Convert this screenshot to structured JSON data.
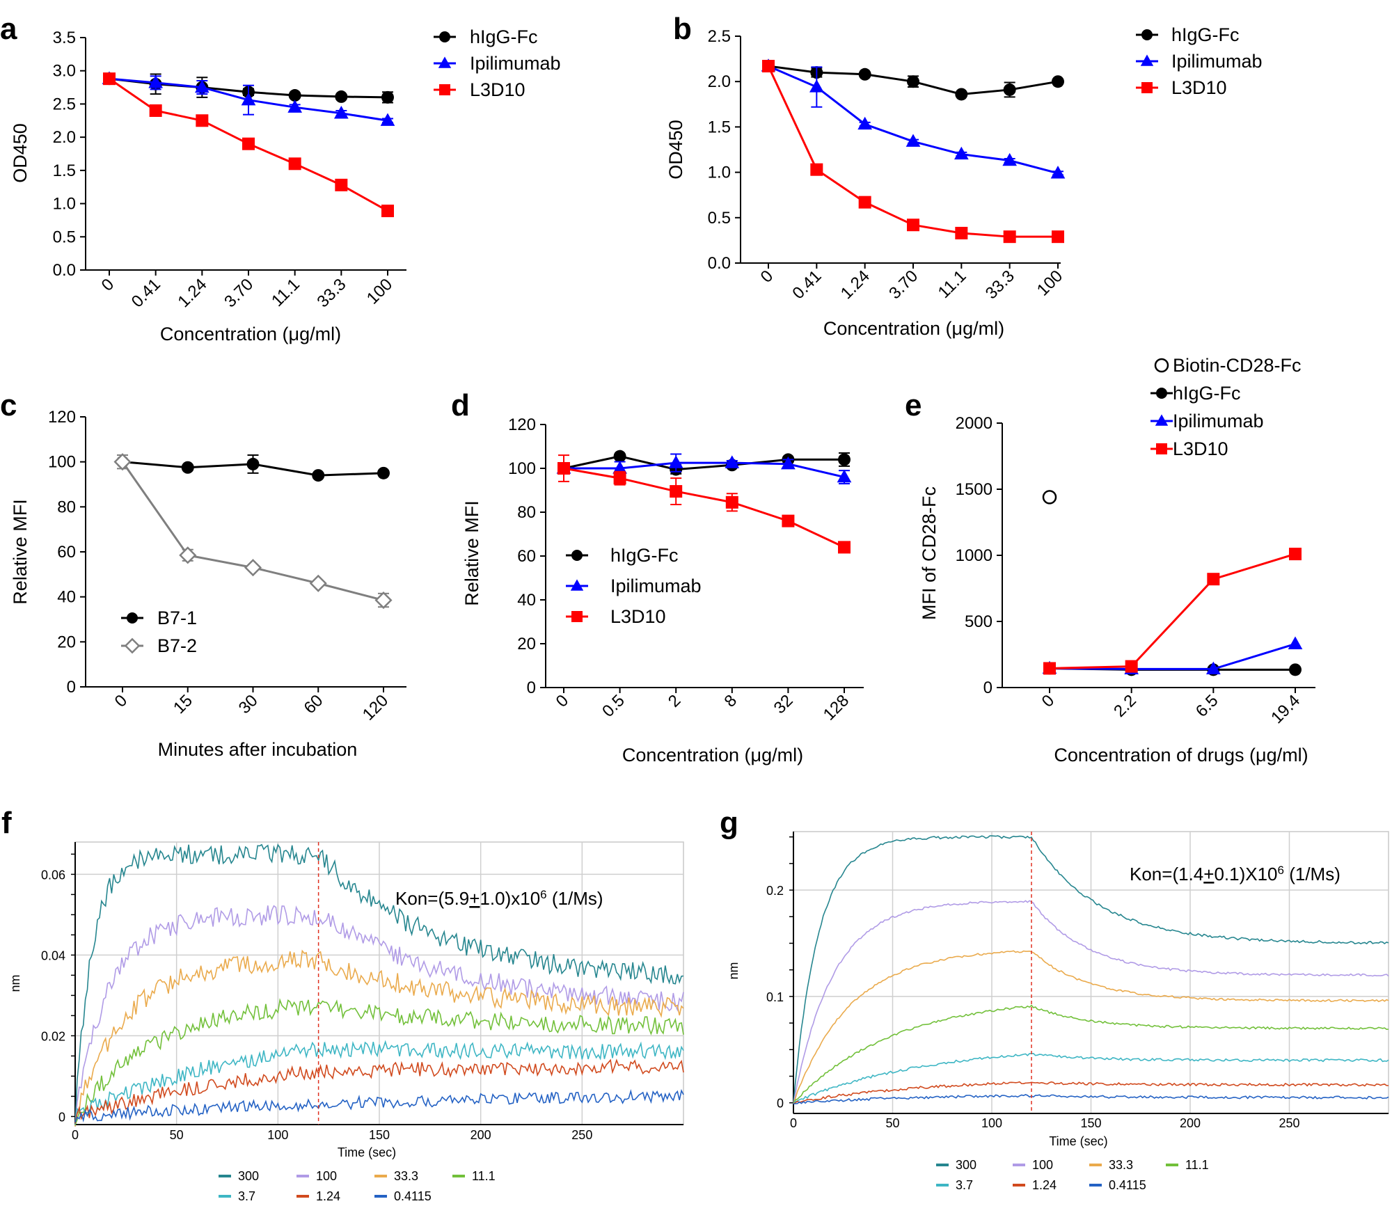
{
  "chart_data": [
    {
      "id": "a",
      "panel_label": "a",
      "type": "line",
      "categories": [
        "0",
        "0.41",
        "1.24",
        "3.70",
        "11.1",
        "33.3",
        "100"
      ],
      "xlabel": "Concentration (μg/ml)",
      "ylabel": "OD450",
      "ylim": [
        0,
        3.5
      ],
      "yticks": [
        "0.0",
        "0.5",
        "1.0",
        "1.5",
        "2.0",
        "2.5",
        "3.0",
        "3.5"
      ],
      "legend_position": "top-right",
      "series": [
        {
          "name": "hIgG-Fc",
          "color": "#000000",
          "marker": "circle",
          "values": [
            2.88,
            2.8,
            2.75,
            2.68,
            2.63,
            2.61,
            2.6
          ],
          "errors": [
            0.05,
            0.15,
            0.15,
            0.05,
            0.03,
            0.03,
            0.08
          ]
        },
        {
          "name": "Ipilimumab",
          "color": "#0000ff",
          "marker": "triangle",
          "values": [
            2.88,
            2.82,
            2.75,
            2.56,
            2.45,
            2.36,
            2.25
          ],
          "errors": [
            0.03,
            0.1,
            0.1,
            0.22,
            0.04,
            0.04,
            0.03
          ]
        },
        {
          "name": "L3D10",
          "color": "#ff0000",
          "marker": "square",
          "values": [
            2.88,
            2.4,
            2.25,
            1.9,
            1.6,
            1.28,
            0.89
          ],
          "errors": [
            0.05,
            0.04,
            0.04,
            0.04,
            0.04,
            0.04,
            0.04
          ]
        }
      ]
    },
    {
      "id": "b",
      "panel_label": "b",
      "type": "line",
      "categories": [
        "0",
        "0.41",
        "1.24",
        "3.70",
        "11.1",
        "33.3",
        "100"
      ],
      "xlabel": "Concentration (μg/ml)",
      "ylabel": "OD450",
      "ylim": [
        0,
        2.5
      ],
      "yticks": [
        "0.0",
        "0.5",
        "1.0",
        "1.5",
        "2.0",
        "2.5"
      ],
      "legend_position": "top-right",
      "series": [
        {
          "name": "hIgG-Fc",
          "color": "#000000",
          "marker": "circle",
          "values": [
            2.17,
            2.1,
            2.08,
            2.0,
            1.86,
            1.91,
            2.0
          ],
          "errors": [
            0.03,
            0.05,
            0.02,
            0.06,
            0.02,
            0.08,
            0.02
          ]
        },
        {
          "name": "Ipilimumab",
          "color": "#0000ff",
          "marker": "triangle",
          "values": [
            2.17,
            1.94,
            1.53,
            1.34,
            1.2,
            1.13,
            0.99
          ],
          "errors": [
            0.03,
            0.22,
            0.02,
            0.02,
            0.02,
            0.02,
            0.02
          ]
        },
        {
          "name": "L3D10",
          "color": "#ff0000",
          "marker": "square",
          "values": [
            2.17,
            1.03,
            0.67,
            0.42,
            0.33,
            0.29,
            0.29
          ],
          "errors": [
            0.03,
            0.03,
            0.02,
            0.02,
            0.02,
            0.02,
            0.02
          ]
        }
      ]
    },
    {
      "id": "c",
      "panel_label": "c",
      "type": "line",
      "categories": [
        "0",
        "15",
        "30",
        "60",
        "120"
      ],
      "xlabel": "Minutes after incubation",
      "ylabel": "Relative MFI",
      "ylim": [
        0,
        120
      ],
      "yticks": [
        "0",
        "20",
        "40",
        "60",
        "80",
        "100",
        "120"
      ],
      "legend_position": "bottom-left",
      "series": [
        {
          "name": "B7-1",
          "color": "#000000",
          "marker": "circle",
          "values": [
            100,
            97.5,
            99,
            94,
            95
          ],
          "errors": [
            0,
            1,
            4,
            1,
            1
          ]
        },
        {
          "name": "B7-2",
          "color": "#7f7f7f",
          "marker": "diamond",
          "values": [
            100,
            58.5,
            53,
            46,
            38.5
          ],
          "errors": [
            3,
            2.5,
            1,
            1,
            3
          ]
        }
      ]
    },
    {
      "id": "d",
      "panel_label": "d",
      "type": "line",
      "categories": [
        "0",
        "0.5",
        "2",
        "8",
        "32",
        "128"
      ],
      "xlabel": "Concentration (μg/ml)",
      "ylabel": "Relative MFI",
      "ylim": [
        0,
        120
      ],
      "yticks": [
        "0",
        "20",
        "40",
        "60",
        "80",
        "100",
        "120"
      ],
      "legend_position": "bottom-left",
      "series": [
        {
          "name": "hIgG-Fc",
          "color": "#000000",
          "marker": "circle",
          "values": [
            100,
            105.5,
            99.5,
            101.5,
            104,
            104
          ],
          "errors": [
            0,
            1,
            2,
            1,
            1,
            3
          ]
        },
        {
          "name": "Ipilimumab",
          "color": "#0000ff",
          "marker": "triangle",
          "values": [
            100,
            100,
            102.5,
            102.5,
            102,
            96
          ],
          "errors": [
            0,
            3,
            4,
            1,
            2,
            3
          ]
        },
        {
          "name": "L3D10",
          "color": "#ff0000",
          "marker": "square",
          "values": [
            100,
            95.5,
            89.5,
            84.5,
            76,
            64
          ],
          "errors": [
            6,
            3,
            6,
            4,
            1,
            1
          ]
        }
      ]
    },
    {
      "id": "e",
      "panel_label": "e",
      "type": "line",
      "categories": [
        "0",
        "2.2",
        "6.5",
        "19.4"
      ],
      "xlabel": "Concentration of drugs (μg/ml)",
      "ylabel": "MFI of CD28-Fc",
      "ylim": [
        0,
        2000
      ],
      "yticks": [
        "0",
        "500",
        "1000",
        "1500",
        "2000"
      ],
      "legend_position": "top",
      "reference": {
        "name": "Biotin-CD28-Fc",
        "marker": "open-circle",
        "category": "0",
        "value": 1440
      },
      "series": [
        {
          "name": "hIgG-Fc",
          "color": "#000000",
          "marker": "circle",
          "values": [
            145,
            135,
            135,
            135
          ]
        },
        {
          "name": "Ipilimumab",
          "color": "#0000ff",
          "marker": "triangle",
          "values": [
            145,
            140,
            140,
            330
          ]
        },
        {
          "name": "L3D10",
          "color": "#ff0000",
          "marker": "square",
          "values": [
            145,
            160,
            820,
            1010
          ]
        }
      ]
    },
    {
      "id": "f",
      "panel_label": "f",
      "type": "line",
      "xlabel": "Time (sec)",
      "ylabel": "nm",
      "xlim": [
        0,
        300
      ],
      "ylim": [
        -0.002,
        0.068
      ],
      "xticks": [
        0,
        50,
        100,
        150,
        200,
        250
      ],
      "ytick_labels": [
        "0",
        "0.02",
        "0.04",
        "0.06"
      ],
      "switch_time": 120,
      "annotation": {
        "prefix": "Kon=(5.9",
        "pm": "+",
        "middle": "1.0)x10",
        "sup": "6",
        "suffix": " (1/Ms)"
      },
      "series": [
        {
          "name": "300",
          "color": "#26868f",
          "plateau": 0.065,
          "kon": 0.12,
          "koff": 0.006,
          "end": 0.034,
          "noise": 0.0025
        },
        {
          "name": "100",
          "color": "#b09be6",
          "plateau": 0.05,
          "kon": 0.06,
          "koff": 0.005,
          "end": 0.027,
          "noise": 0.0025
        },
        {
          "name": "33.3",
          "color": "#eaaa4c",
          "plateau": 0.039,
          "kon": 0.04,
          "koff": 0.005,
          "end": 0.026,
          "noise": 0.0025
        },
        {
          "name": "11.1",
          "color": "#72c03a",
          "plateau": 0.029,
          "kon": 0.025,
          "koff": 0.005,
          "end": 0.022,
          "noise": 0.0022
        },
        {
          "name": "3.7",
          "color": "#3eb6c4",
          "plateau": 0.022,
          "kon": 0.012,
          "koff": 0.004,
          "end": 0.016,
          "noise": 0.002
        },
        {
          "name": "1.24",
          "color": "#d14a1e",
          "plateau": 0.016,
          "kon": 0.01,
          "koff": 0.002,
          "end": 0.013,
          "noise": 0.0018
        },
        {
          "name": "0.4115",
          "color": "#2462c4",
          "plateau": 0.006,
          "kon": 0.006,
          "koff": 0.002,
          "end": 0.006,
          "noise": 0.0015
        }
      ]
    },
    {
      "id": "g",
      "panel_label": "g",
      "type": "line",
      "xlabel": "Time (sec)",
      "ylabel": "nm",
      "xlim": [
        0,
        300
      ],
      "ylim": [
        -0.01,
        0.255
      ],
      "xticks": [
        0,
        50,
        100,
        150,
        200,
        250
      ],
      "ytick_labels": [
        "0",
        "0.1",
        "0.2"
      ],
      "switch_time": 120,
      "annotation": {
        "prefix": "Kon=(1.4",
        "pm": "+",
        "middle": "0.1)X10",
        "sup": "6",
        "suffix": " (1/Ms)"
      },
      "series": [
        {
          "name": "300",
          "color": "#26868f",
          "plateau": 0.25,
          "kon": 0.08,
          "koff": 0.01,
          "end": 0.15,
          "noise": 0.0012
        },
        {
          "name": "100",
          "color": "#b09be6",
          "plateau": 0.19,
          "kon": 0.05,
          "koff": 0.012,
          "end": 0.12,
          "noise": 0.001
        },
        {
          "name": "33.3",
          "color": "#eaaa4c",
          "plateau": 0.145,
          "kon": 0.035,
          "koff": 0.012,
          "end": 0.096,
          "noise": 0.001
        },
        {
          "name": "11.1",
          "color": "#72c03a",
          "plateau": 0.1,
          "kon": 0.02,
          "koff": 0.012,
          "end": 0.07,
          "noise": 0.001
        },
        {
          "name": "3.7",
          "color": "#3eb6c4",
          "plateau": 0.055,
          "kon": 0.015,
          "koff": 0.012,
          "end": 0.04,
          "noise": 0.0012
        },
        {
          "name": "1.24",
          "color": "#d14a1e",
          "plateau": 0.023,
          "kon": 0.015,
          "koff": 0.01,
          "end": 0.017,
          "noise": 0.0012
        },
        {
          "name": "0.4115",
          "color": "#2462c4",
          "plateau": 0.008,
          "kon": 0.015,
          "koff": 0.01,
          "end": 0.005,
          "noise": 0.0012
        }
      ]
    }
  ]
}
